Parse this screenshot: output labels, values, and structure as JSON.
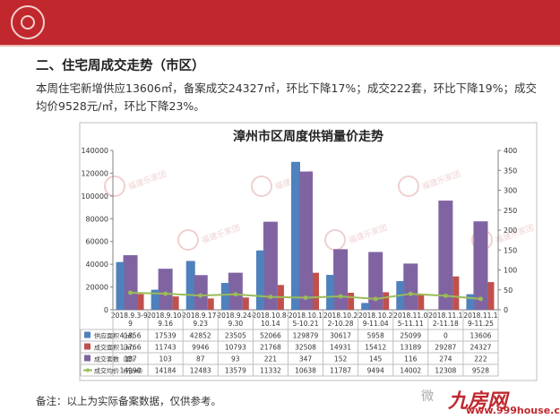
{
  "section_title": "二、住宅周成交走势（市区）",
  "summary": "本周住宅新增供应13606㎡，备案成交24327㎡，环比下降17%；成交222套，环比下降19%；成交均价9528元/㎡，环比下降23%。",
  "note": "备注：以上为实际备案数据，仅供参考。",
  "watermark_chart": "福建乐家团",
  "brand": "九房网",
  "brand_url": "www.999house.com",
  "wechat_text": "微",
  "colors": {
    "header_red": "#c0282e",
    "supply": "#4f81bd",
    "deal_area": "#c0504d",
    "deal_units": "#8064a2",
    "price": "#9bbb59"
  },
  "chart_data": {
    "type": "bar",
    "title": "漳州市区周度供销量价走势",
    "categories": [
      "2018.9.3-9.9",
      "2018.9.10-9.16",
      "2018.9.17-9.23",
      "2018.9.24-9.30",
      "2018.10.8-10.14",
      "2018.10.15-10.21",
      "2018.10.22-10.28",
      "2018.10.29-11.04",
      "2018.11.05-11.11",
      "2018.11.12-11.18",
      "2018.11.19-11.25"
    ],
    "category_labels": [
      [
        "2018.9.3-9.",
        "9"
      ],
      [
        "2018.9.10-",
        "9.16"
      ],
      [
        "2018.9.17-",
        "9.23"
      ],
      [
        "2018.9.24-",
        "9.30"
      ],
      [
        "2018.10.8-",
        "10.14"
      ],
      [
        "2018.10.1",
        "5-10.21"
      ],
      [
        "2018.10.2",
        "2-10.28"
      ],
      [
        "2018.10.2",
        "9-11.04"
      ],
      [
        "2018.11.0",
        "5-11.11"
      ],
      [
        "2018.11.1",
        "2-11.18"
      ],
      [
        "2018.11.1",
        "9-11.25"
      ]
    ],
    "y_left": {
      "min": 0,
      "max": 140000,
      "ticks": [
        "0",
        "20000",
        "40000",
        "60000",
        "80000",
        "100000",
        "120000",
        "140000"
      ]
    },
    "y_right": {
      "min": 0,
      "max": 400,
      "ticks": [
        "0",
        "50",
        "100",
        "150",
        "200",
        "250",
        "300",
        "350",
        "400"
      ]
    },
    "series": [
      {
        "name": "供应面积（㎡）",
        "axis": "left",
        "kind": "bar",
        "color": "#4f81bd",
        "values": [
          41856,
          17539,
          42852,
          23505,
          52066,
          129879,
          30617,
          5958,
          25099,
          0,
          13606
        ]
      },
      {
        "name": "成交面积（㎡）",
        "axis": "left",
        "kind": "bar",
        "color": "#c0504d",
        "values": [
          13766,
          11743,
          9946,
          10793,
          21768,
          32508,
          14931,
          15412,
          13189,
          29287,
          24327
        ]
      },
      {
        "name": "成交套数（套）",
        "axis": "right",
        "kind": "bar",
        "color": "#8064a2",
        "values": [
          137,
          103,
          87,
          93,
          221,
          347,
          152,
          145,
          116,
          274,
          222
        ]
      },
      {
        "name": "成交均价（元/㎡）",
        "axis": "left",
        "kind": "line",
        "color": "#9bbb59",
        "values": [
          14990,
          14184,
          12483,
          13579,
          11332,
          10638,
          11787,
          9494,
          14002,
          12308,
          9528
        ]
      }
    ],
    "grid": false
  }
}
